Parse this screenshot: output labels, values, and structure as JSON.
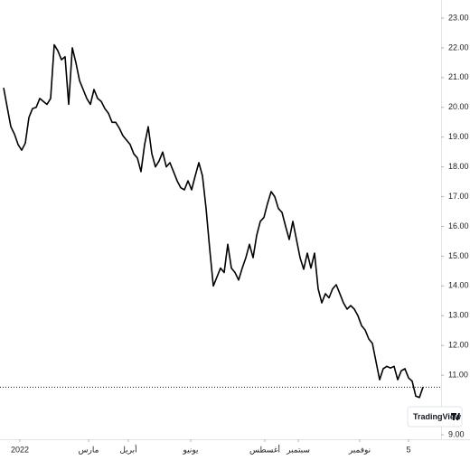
{
  "chart_data": {
    "type": "line",
    "brand": "TradingView",
    "series": [
      {
        "color": "#000000",
        "values": [
          20.66,
          20.0,
          19.35,
          19.1,
          18.75,
          18.56,
          18.8,
          19.66,
          19.96,
          20.0,
          20.3,
          20.2,
          20.1,
          20.3,
          22.1,
          21.9,
          21.6,
          21.7,
          20.1,
          22.0,
          21.5,
          20.9,
          20.6,
          20.3,
          20.1,
          20.6,
          20.3,
          20.2,
          19.96,
          19.8,
          19.5,
          19.5,
          19.3,
          19.05,
          18.9,
          18.75,
          18.44,
          18.3,
          17.84,
          18.75,
          19.35,
          18.44,
          18.0,
          18.2,
          18.5,
          18.0,
          18.14,
          17.84,
          17.53,
          17.3,
          17.23,
          17.53,
          17.23,
          17.7,
          18.14,
          17.7,
          16.6,
          15.25,
          14.0,
          14.3,
          14.6,
          14.45,
          15.4,
          14.6,
          14.45,
          14.2,
          14.6,
          14.95,
          15.4,
          14.95,
          15.7,
          16.17,
          16.3,
          16.77,
          17.17,
          17.0,
          16.6,
          16.47,
          16.0,
          15.56,
          16.17,
          15.56,
          14.95,
          14.56,
          15.1,
          14.6,
          15.1,
          13.9,
          13.43,
          13.74,
          13.6,
          13.9,
          14.04,
          13.74,
          13.43,
          13.22,
          13.34,
          13.22,
          13.0,
          12.67,
          12.52,
          12.22,
          12.07,
          11.46,
          10.85,
          11.22,
          11.3,
          11.24,
          11.3,
          10.85,
          11.15,
          11.22,
          10.91,
          10.8,
          10.3,
          10.25,
          10.6
        ]
      }
    ],
    "xlim": [
      -1,
      121
    ],
    "xticks": [
      {
        "value": 4.5,
        "label": "2022"
      },
      {
        "value": 23.5,
        "label": "مارس"
      },
      {
        "value": 34.5,
        "label": "أبريل"
      },
      {
        "value": 51.75,
        "label": "يونيو"
      },
      {
        "value": 72.25,
        "label": "أغسطس"
      },
      {
        "value": 81.5,
        "label": "سبتمبر"
      },
      {
        "value": 98.5,
        "label": "نوفمبر"
      },
      {
        "value": 112,
        "label": "5"
      }
    ],
    "ylim": [
      9,
      23
    ],
    "yticks": [
      {
        "value": 23,
        "label": "23.00"
      },
      {
        "value": 22,
        "label": "22.00"
      },
      {
        "value": 21,
        "label": "21.00"
      },
      {
        "value": 20,
        "label": "20.00"
      },
      {
        "value": 19,
        "label": "19.00"
      },
      {
        "value": 18,
        "label": "18.00"
      },
      {
        "value": 17,
        "label": "17.00"
      },
      {
        "value": 16,
        "label": "16.00"
      },
      {
        "value": 15,
        "label": "15.00"
      },
      {
        "value": 14,
        "label": "14.00"
      },
      {
        "value": 13,
        "label": "13.00"
      },
      {
        "value": 12,
        "label": "12.00"
      },
      {
        "value": 11,
        "label": "11.00"
      },
      {
        "value": 9,
        "label": "9.00"
      }
    ],
    "grid": false
  }
}
